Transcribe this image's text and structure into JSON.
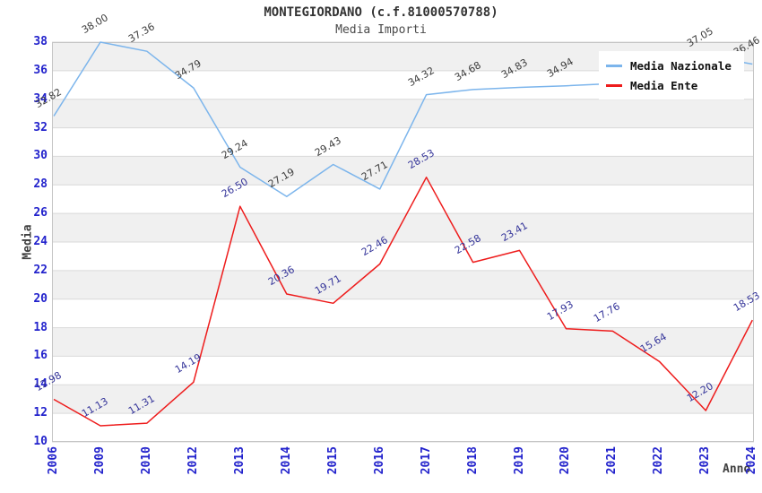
{
  "chart_data": {
    "type": "line",
    "title": "MONTEGIORDANO (c.f.81000570788)",
    "subtitle": "Media Importi",
    "ylabel": "Media",
    "xlabel": "Anno",
    "ylim": [
      10,
      38
    ],
    "ytick_step": 2,
    "yticks": [
      38,
      36,
      34,
      32,
      30,
      28,
      26,
      24,
      22,
      20,
      18,
      16,
      14,
      12,
      10
    ],
    "grid": "alternating horizontal bands, gray below top tick",
    "legend_position": "top-right inside plot",
    "categories": [
      "2006",
      "2009",
      "2010",
      "2012",
      "2013",
      "2014",
      "2015",
      "2016",
      "2017",
      "2018",
      "2019",
      "2020",
      "2021",
      "2022",
      "2023",
      "2024"
    ],
    "series": [
      {
        "name": "Media Nazionale",
        "color": "#7cb5ec",
        "label_color": "#3c3c3c",
        "values": [
          32.82,
          38.0,
          37.36,
          34.79,
          29.24,
          27.19,
          29.43,
          27.71,
          34.32,
          34.68,
          34.83,
          34.94,
          35.1,
          35.9,
          37.05,
          36.46
        ],
        "labels": [
          "32.82",
          "38.00",
          "37.36",
          "34.79",
          "29.24",
          "27.19",
          "29.43",
          "27.71",
          "34.32",
          "34.68",
          "34.83",
          "34.94",
          "",
          "",
          "37.05",
          "36.46"
        ]
      },
      {
        "name": "Media Ente",
        "color": "#ee1c1c",
        "label_color": "#333399",
        "values": [
          12.98,
          11.13,
          11.31,
          14.19,
          26.5,
          20.36,
          19.71,
          22.46,
          28.53,
          22.58,
          23.41,
          17.93,
          17.76,
          15.64,
          12.2,
          18.53
        ],
        "labels": [
          "12.98",
          "11.13",
          "11.31",
          "14.19",
          "26.50",
          "20.36",
          "19.71",
          "22.46",
          "28.53",
          "22.58",
          "23.41",
          "17.93",
          "17.76",
          "15.64",
          "12.20",
          "18.53"
        ]
      }
    ],
    "style_colors": {
      "band_fill": "#f0f0f0",
      "gridline": "#d9d9d9",
      "plot_border": "#c5c5c5",
      "tick_label": "#2222cc",
      "axis_title": "#404040",
      "title": "#333333",
      "subtitle": "#4a4a4a"
    }
  }
}
